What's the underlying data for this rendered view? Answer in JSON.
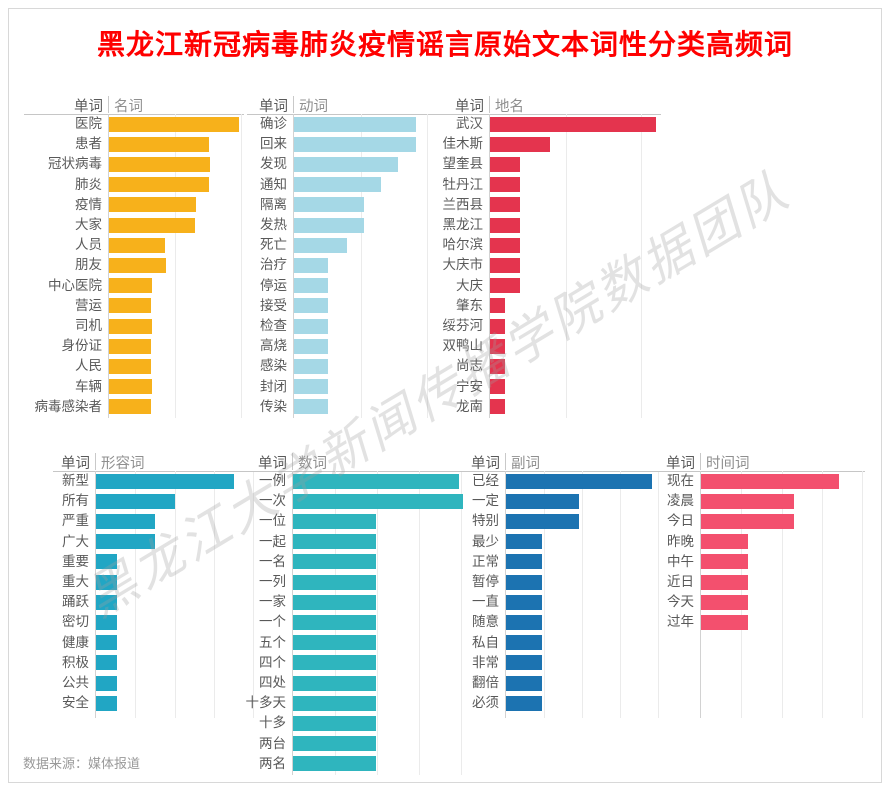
{
  "page": {
    "title": "黑龙江新冠病毒肺炎疫情谣言原始文本词性分类高频词",
    "title_color": "#FF0000",
    "source_note": "数据来源：媒体报道",
    "watermark": "黑龙江大学新闻传播学院数据团队",
    "background_color": "#FFFFFF",
    "border_color": "#D8D8D8"
  },
  "values_note": "No numeric axis is shown in the image; values are relative bar lengths normalized so the longest bar in each chart = 100.",
  "chart_data": [
    {
      "id": "nouns",
      "type": "bar",
      "orientation": "horizontal",
      "word_column_header": "单词",
      "pos_column_header": "名词",
      "color": "#F7B11B",
      "categories": [
        "医院",
        "患者",
        "冠状病毒",
        "肺炎",
        "疫情",
        "大家",
        "人员",
        "朋友",
        "中心医院",
        "营运",
        "司机",
        "身份证",
        "人民",
        "车辆",
        "病毒感染者"
      ],
      "values": [
        100,
        77,
        78,
        77,
        67,
        66,
        43,
        44,
        33,
        32,
        33,
        32,
        32,
        33,
        32
      ]
    },
    {
      "id": "verbs",
      "type": "bar",
      "orientation": "horizontal",
      "word_column_header": "单词",
      "pos_column_header": "动词",
      "color": "#A5D8E6",
      "categories": [
        "确诊",
        "回来",
        "发现",
        "通知",
        "隔离",
        "发热",
        "死亡",
        "治疗",
        "停运",
        "接受",
        "检查",
        "高烧",
        "感染",
        "封闭",
        "传染"
      ],
      "values": [
        100,
        100,
        85,
        71,
        57,
        57,
        43,
        28,
        28,
        28,
        28,
        28,
        28,
        28,
        28
      ]
    },
    {
      "id": "places",
      "type": "bar",
      "orientation": "horizontal",
      "word_column_header": "单词",
      "pos_column_header": "地名",
      "color": "#E4344E",
      "categories": [
        "武汉",
        "佳木斯",
        "望奎县",
        "牡丹江",
        "兰西县",
        "黑龙江",
        "哈尔滨",
        "大庆市",
        "大庆",
        "肇东",
        "绥芬河",
        "双鸭山",
        "尚志",
        "宁安",
        "龙南"
      ],
      "values": [
        100,
        36,
        18,
        18,
        18,
        18,
        18,
        18,
        18,
        9,
        9,
        9,
        9,
        9,
        9
      ]
    },
    {
      "id": "adjectives",
      "type": "bar",
      "orientation": "horizontal",
      "word_column_header": "单词",
      "pos_column_header": "形容词",
      "color": "#21A6C4",
      "categories": [
        "新型",
        "所有",
        "严重",
        "广大",
        "重要",
        "重大",
        "踊跃",
        "密切",
        "健康",
        "积极",
        "公共",
        "安全"
      ],
      "values": [
        100,
        57,
        43,
        43,
        15,
        15,
        15,
        15,
        15,
        15,
        15,
        15
      ]
    },
    {
      "id": "numerals",
      "type": "bar",
      "orientation": "horizontal",
      "word_column_header": "单词",
      "pos_column_header": "数词",
      "color": "#2FB5BE",
      "categories": [
        "一例",
        "一次",
        "一位",
        "一起",
        "一名",
        "一列",
        "一家",
        "一个",
        "五个",
        "四个",
        "四处",
        "十多天",
        "十多",
        "两台",
        "两名"
      ],
      "values": [
        98,
        100,
        49,
        49,
        49,
        49,
        49,
        49,
        49,
        49,
        49,
        49,
        49,
        49,
        49
      ]
    },
    {
      "id": "adverbs",
      "type": "bar",
      "orientation": "horizontal",
      "word_column_header": "单词",
      "pos_column_header": "副词",
      "color": "#1C73B1",
      "categories": [
        "已经",
        "一定",
        "特别",
        "最少",
        "正常",
        "暂停",
        "一直",
        "随意",
        "私自",
        "非常",
        "翻倍",
        "必须"
      ],
      "values": [
        100,
        50,
        50,
        25,
        25,
        25,
        25,
        25,
        25,
        25,
        25,
        25
      ]
    },
    {
      "id": "time",
      "type": "bar",
      "orientation": "horizontal",
      "word_column_header": "单词",
      "pos_column_header": "时间词",
      "color": "#F3506E",
      "categories": [
        "现在",
        "凌晨",
        "今日",
        "昨晚",
        "中午",
        "近日",
        "今天",
        "过年"
      ],
      "values": [
        100,
        67,
        67,
        34,
        34,
        34,
        34,
        34
      ]
    }
  ]
}
